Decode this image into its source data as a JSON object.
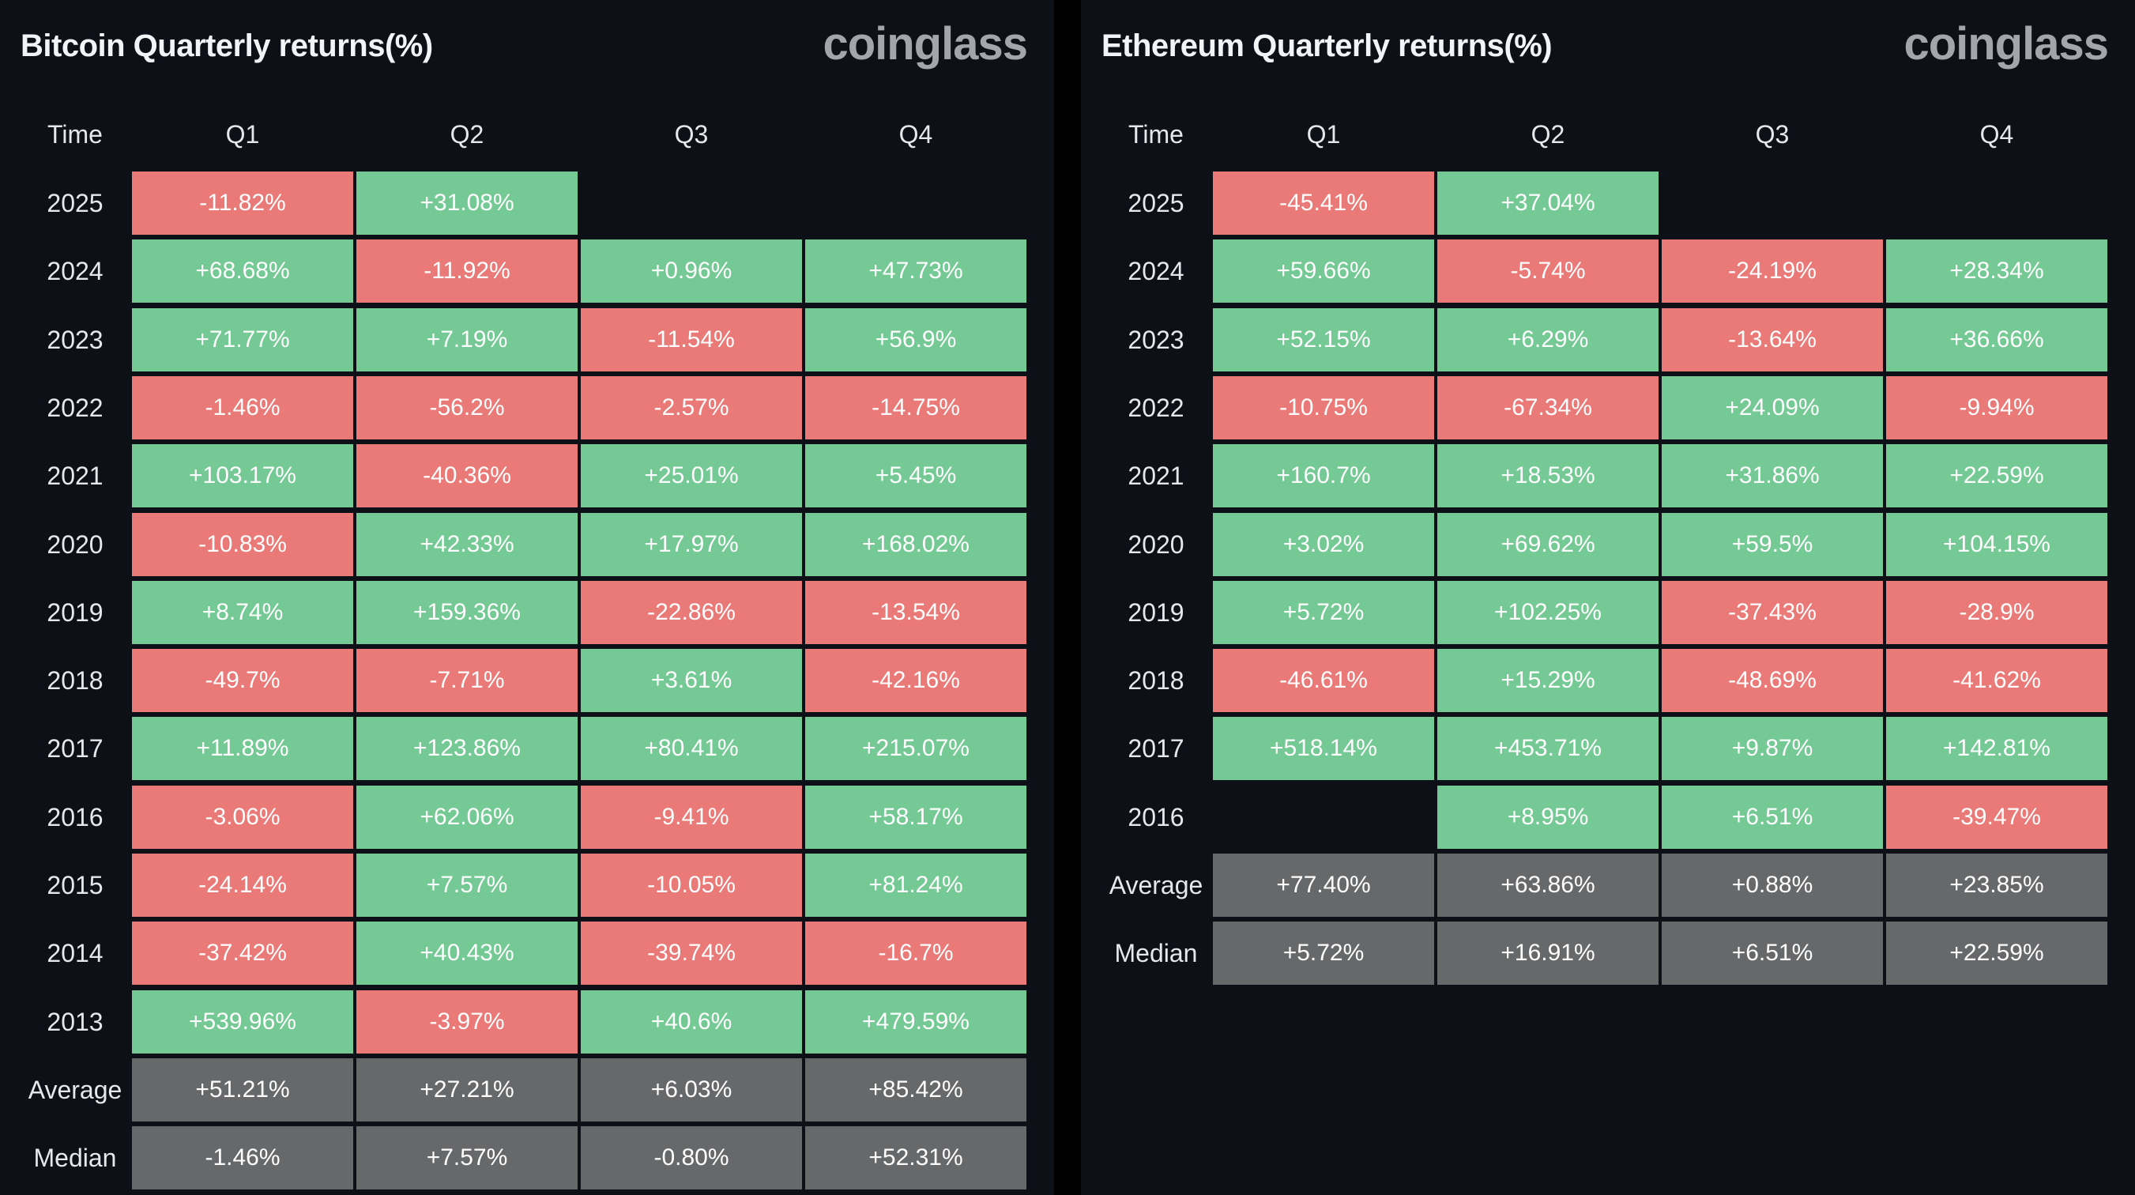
{
  "colors": {
    "positive": "#74c994",
    "negative": "#e97a78",
    "summary": "#67686a",
    "background": "#0d1016"
  },
  "chart_data": [
    {
      "type": "table",
      "title": "Bitcoin Quarterly returns(%)",
      "logo": "coinglass",
      "columns": [
        "Time",
        "Q1",
        "Q2",
        "Q3",
        "Q4"
      ],
      "rows": [
        {
          "label": "2025",
          "values": [
            "-11.82%",
            "+31.08%",
            "",
            ""
          ]
        },
        {
          "label": "2024",
          "values": [
            "+68.68%",
            "-11.92%",
            "+0.96%",
            "+47.73%"
          ]
        },
        {
          "label": "2023",
          "values": [
            "+71.77%",
            "+7.19%",
            "-11.54%",
            "+56.9%"
          ]
        },
        {
          "label": "2022",
          "values": [
            "-1.46%",
            "-56.2%",
            "-2.57%",
            "-14.75%"
          ]
        },
        {
          "label": "2021",
          "values": [
            "+103.17%",
            "-40.36%",
            "+25.01%",
            "+5.45%"
          ]
        },
        {
          "label": "2020",
          "values": [
            "-10.83%",
            "+42.33%",
            "+17.97%",
            "+168.02%"
          ]
        },
        {
          "label": "2019",
          "values": [
            "+8.74%",
            "+159.36%",
            "-22.86%",
            "-13.54%"
          ]
        },
        {
          "label": "2018",
          "values": [
            "-49.7%",
            "-7.71%",
            "+3.61%",
            "-42.16%"
          ]
        },
        {
          "label": "2017",
          "values": [
            "+11.89%",
            "+123.86%",
            "+80.41%",
            "+215.07%"
          ]
        },
        {
          "label": "2016",
          "values": [
            "-3.06%",
            "+62.06%",
            "-9.41%",
            "+58.17%"
          ]
        },
        {
          "label": "2015",
          "values": [
            "-24.14%",
            "+7.57%",
            "-10.05%",
            "+81.24%"
          ]
        },
        {
          "label": "2014",
          "values": [
            "-37.42%",
            "+40.43%",
            "-39.74%",
            "-16.7%"
          ]
        },
        {
          "label": "2013",
          "values": [
            "+539.96%",
            "-3.97%",
            "+40.6%",
            "+479.59%"
          ]
        },
        {
          "label": "Average",
          "summary": true,
          "values": [
            "+51.21%",
            "+27.21%",
            "+6.03%",
            "+85.42%"
          ]
        },
        {
          "label": "Median",
          "summary": true,
          "values": [
            "-1.46%",
            "+7.57%",
            "-0.80%",
            "+52.31%"
          ]
        }
      ]
    },
    {
      "type": "table",
      "title": "Ethereum Quarterly returns(%)",
      "logo": "coinglass",
      "columns": [
        "Time",
        "Q1",
        "Q2",
        "Q3",
        "Q4"
      ],
      "rows": [
        {
          "label": "2025",
          "values": [
            "-45.41%",
            "+37.04%",
            "",
            ""
          ]
        },
        {
          "label": "2024",
          "values": [
            "+59.66%",
            "-5.74%",
            "-24.19%",
            "+28.34%"
          ]
        },
        {
          "label": "2023",
          "values": [
            "+52.15%",
            "+6.29%",
            "-13.64%",
            "+36.66%"
          ]
        },
        {
          "label": "2022",
          "values": [
            "-10.75%",
            "-67.34%",
            "+24.09%",
            "-9.94%"
          ]
        },
        {
          "label": "2021",
          "values": [
            "+160.7%",
            "+18.53%",
            "+31.86%",
            "+22.59%"
          ]
        },
        {
          "label": "2020",
          "values": [
            "+3.02%",
            "+69.62%",
            "+59.5%",
            "+104.15%"
          ]
        },
        {
          "label": "2019",
          "values": [
            "+5.72%",
            "+102.25%",
            "-37.43%",
            "-28.9%"
          ]
        },
        {
          "label": "2018",
          "values": [
            "-46.61%",
            "+15.29%",
            "-48.69%",
            "-41.62%"
          ]
        },
        {
          "label": "2017",
          "values": [
            "+518.14%",
            "+453.71%",
            "+9.87%",
            "+142.81%"
          ]
        },
        {
          "label": "2016",
          "values": [
            "",
            "+8.95%",
            "+6.51%",
            "-39.47%"
          ]
        },
        {
          "label": "Average",
          "summary": true,
          "values": [
            "+77.40%",
            "+63.86%",
            "+0.88%",
            "+23.85%"
          ]
        },
        {
          "label": "Median",
          "summary": true,
          "values": [
            "+5.72%",
            "+16.91%",
            "+6.51%",
            "+22.59%"
          ]
        }
      ]
    }
  ]
}
